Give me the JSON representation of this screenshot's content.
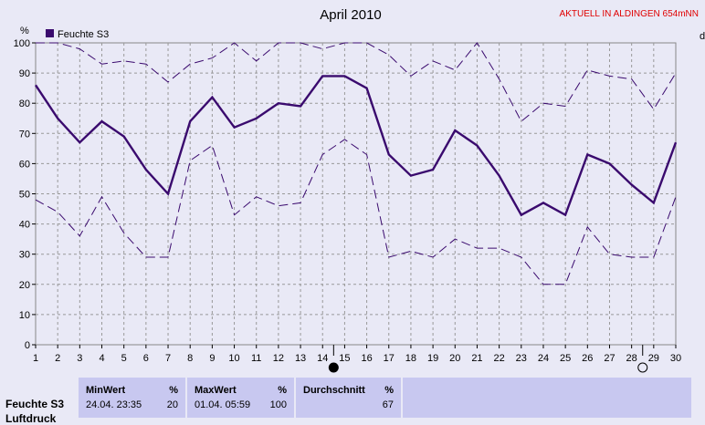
{
  "header": {
    "title": "April 2010",
    "station": "AKTUELL IN ALDINGEN 654mNN",
    "right_edge_label": "d"
  },
  "chart_data": {
    "type": "line",
    "title": "April 2010",
    "ylabel": "%",
    "ylim": [
      0,
      100
    ],
    "yticks": [
      0,
      10,
      20,
      30,
      40,
      50,
      60,
      70,
      80,
      90,
      100
    ],
    "x": [
      1,
      2,
      3,
      4,
      5,
      6,
      7,
      8,
      9,
      10,
      11,
      12,
      13,
      14,
      15,
      16,
      17,
      18,
      19,
      20,
      21,
      22,
      23,
      24,
      25,
      26,
      27,
      28,
      29,
      30
    ],
    "xlim": [
      1,
      30
    ],
    "grid": true,
    "legend_position": "top-left",
    "series": [
      {
        "name": "Feuchte S3",
        "role": "mean",
        "color": "#3a0a6e",
        "values": [
          86,
          75,
          67,
          74,
          69,
          58,
          50,
          74,
          82,
          72,
          75,
          80,
          79,
          89,
          89,
          85,
          63,
          56,
          58,
          71,
          66,
          56,
          43,
          47,
          43,
          63,
          60,
          53,
          47,
          67
        ]
      },
      {
        "role": "max",
        "color": "#3a0a6e",
        "dashed": true,
        "values": [
          100,
          100,
          98,
          93,
          94,
          93,
          87,
          93,
          95,
          100,
          94,
          100,
          100,
          98,
          100,
          100,
          96,
          89,
          94,
          91,
          100,
          88,
          74,
          80,
          79,
          91,
          89,
          88,
          78,
          90
        ]
      },
      {
        "role": "min",
        "color": "#3a0a6e",
        "dashed": true,
        "values": [
          48,
          44,
          36,
          49,
          37,
          29,
          29,
          61,
          66,
          43,
          49,
          46,
          47,
          63,
          68,
          63,
          29,
          31,
          29,
          35,
          32,
          32,
          29,
          20,
          20,
          39,
          30,
          29,
          29,
          49
        ]
      }
    ],
    "markers": [
      {
        "x": 14.5,
        "type": "full-moon-filled"
      },
      {
        "x": 28.5,
        "type": "new-moon-open"
      }
    ]
  },
  "stats": {
    "row_label": "Feuchte S3",
    "row_label_2": "Luftdruck",
    "min": {
      "header": "MinWert",
      "unit": "%",
      "time": "24.04.  23:35",
      "value": "20"
    },
    "max": {
      "header": "MaxWert",
      "unit": "%",
      "time": "01.04.  05:59",
      "value": "100"
    },
    "avg": {
      "header": "Durchschnitt",
      "unit": "%",
      "value": "67"
    }
  }
}
